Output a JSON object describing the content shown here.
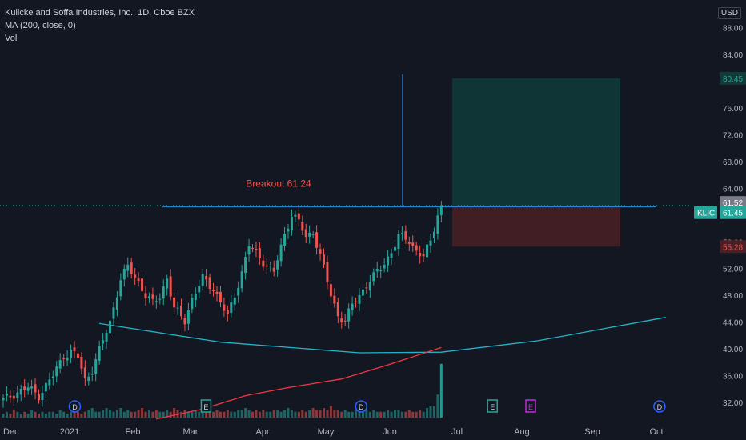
{
  "legend": {
    "symbol_line": "Kulicke and Soffa Industries, Inc., 1D, Cboe BZX",
    "ma_line": "MA (200, close, 0)",
    "vol_line": "Vol"
  },
  "currency": "USD",
  "colors": {
    "background": "#131722",
    "up": "#26a69a",
    "down": "#ef5350",
    "ma": "#f23645",
    "curve": "#22b5c7",
    "breakout_line": "#2f7fd8",
    "target_zone": "#0f3b39",
    "stop_zone": "#4a1f25",
    "earnings": "#c12ad6",
    "dividend": "#2962ff"
  },
  "chart_data": {
    "type": "candlestick",
    "x_tick_labels": [
      "Dec",
      "2021",
      "Feb",
      "Mar",
      "Apr",
      "May",
      "Jun",
      "Jul",
      "Aug",
      "Sep",
      "Oct"
    ],
    "y_tick_labels": [
      "32.00",
      "36.00",
      "40.00",
      "44.00",
      "48.00",
      "52.00",
      "56.00",
      "60.00",
      "64.00",
      "68.00",
      "72.00",
      "76.00",
      "80.00",
      "84.00",
      "88.00"
    ],
    "y_range": [
      29,
      90
    ],
    "grid": false,
    "annotation": "Breakout 61.24",
    "breakout_level": 61.24,
    "price_labels": [
      {
        "text": "80.45",
        "value": 80.45,
        "style": "target"
      },
      {
        "text": "61.52",
        "value": 61.52,
        "style": "gray"
      },
      {
        "text": "61.45",
        "value": 61.45,
        "style": "last",
        "ticker": "KLIC"
      },
      {
        "text": "55.28",
        "value": 55.28,
        "style": "stop"
      }
    ],
    "position": {
      "entry": 61.45,
      "target": 80.45,
      "stop": 55.28
    },
    "event_markers": [
      {
        "letter": "D",
        "kind": "dividend",
        "date_index": 6
      },
      {
        "letter": "E",
        "kind": "earnings",
        "date_index": 17
      },
      {
        "letter": "D",
        "kind": "dividend",
        "date_index": 30
      },
      {
        "letter": "E",
        "kind": "earnings",
        "date_index": 41
      },
      {
        "letter": "D",
        "kind": "dividend",
        "date_index": 55
      },
      {
        "letter": "E",
        "kind": "earnings",
        "date_index": 66
      }
    ],
    "price_path": [
      [
        0,
        32.4
      ],
      [
        4,
        33.5
      ],
      [
        7,
        34.2
      ],
      [
        10,
        33.0
      ],
      [
        14,
        36.0
      ],
      [
        17,
        39.0
      ],
      [
        19,
        39.6
      ],
      [
        21,
        38.8
      ],
      [
        23,
        35.2
      ],
      [
        25,
        37.0
      ],
      [
        27,
        39.8
      ],
      [
        30,
        44.0
      ],
      [
        33,
        50.5
      ],
      [
        35,
        52.2
      ],
      [
        38,
        50.0
      ],
      [
        40,
        48.0
      ],
      [
        42,
        46.8
      ],
      [
        44,
        47.8
      ],
      [
        46,
        50.6
      ],
      [
        48,
        46.0
      ],
      [
        51,
        44.2
      ],
      [
        53,
        47.5
      ],
      [
        56,
        50.5
      ],
      [
        59,
        49.0
      ],
      [
        61,
        47.0
      ],
      [
        63,
        44.8
      ],
      [
        65,
        48.0
      ],
      [
        67,
        51.5
      ],
      [
        69,
        55.5
      ],
      [
        71,
        54.2
      ],
      [
        73,
        53.0
      ],
      [
        76,
        51.5
      ],
      [
        79,
        57.0
      ],
      [
        81,
        60.2
      ],
      [
        83,
        59.0
      ],
      [
        85,
        56.6
      ],
      [
        87,
        57.5
      ],
      [
        89,
        54.0
      ],
      [
        92,
        48.0
      ],
      [
        94,
        45.0
      ],
      [
        96,
        44.2
      ],
      [
        98,
        46.5
      ],
      [
        100,
        48.0
      ],
      [
        103,
        50.3
      ],
      [
        106,
        52.0
      ],
      [
        109,
        54.5
      ],
      [
        111,
        56.8
      ],
      [
        114,
        56.2
      ],
      [
        116,
        54.6
      ],
      [
        118,
        53.8
      ],
      [
        120,
        56.0
      ],
      [
        122,
        60.2
      ],
      [
        123,
        61.45
      ]
    ],
    "volume": [
      2,
      3,
      2,
      4,
      3,
      2,
      3,
      2,
      4,
      3,
      2,
      3,
      2,
      3,
      3,
      2,
      4,
      3,
      2,
      3,
      4,
      3,
      2,
      3,
      4,
      5,
      3,
      3,
      4,
      5,
      4,
      3,
      4,
      5,
      3,
      4,
      3,
      3,
      4,
      5,
      3,
      4,
      3,
      4,
      3,
      3,
      4,
      3,
      5,
      4,
      3,
      4,
      3,
      3,
      4,
      3,
      4,
      5,
      3,
      3,
      4,
      3,
      3,
      4,
      3,
      3,
      4,
      4,
      5,
      4,
      3,
      4,
      3,
      4,
      3,
      3,
      4,
      4,
      3,
      4,
      5,
      4,
      3,
      3,
      4,
      3,
      4,
      5,
      4,
      4,
      5,
      4,
      6,
      4,
      4,
      3,
      4,
      3,
      3,
      4,
      3,
      3,
      4,
      3,
      4,
      3,
      3,
      3,
      4,
      3,
      4,
      4,
      3,
      3,
      4,
      3,
      3,
      4,
      3,
      5,
      6,
      6,
      12,
      28
    ],
    "ma200": [
      [
        43,
        29.5
      ],
      [
        56,
        31.0
      ],
      [
        68,
        33.0
      ],
      [
        80,
        34.2
      ],
      [
        95,
        35.5
      ],
      [
        108,
        37.6
      ],
      [
        123,
        40.2
      ]
    ],
    "rounding_curve": [
      [
        27,
        43.8
      ],
      [
        61,
        41.0
      ],
      [
        100,
        39.4
      ],
      [
        123,
        39.5
      ],
      [
        150,
        41.2
      ],
      [
        186,
        44.7
      ]
    ]
  }
}
